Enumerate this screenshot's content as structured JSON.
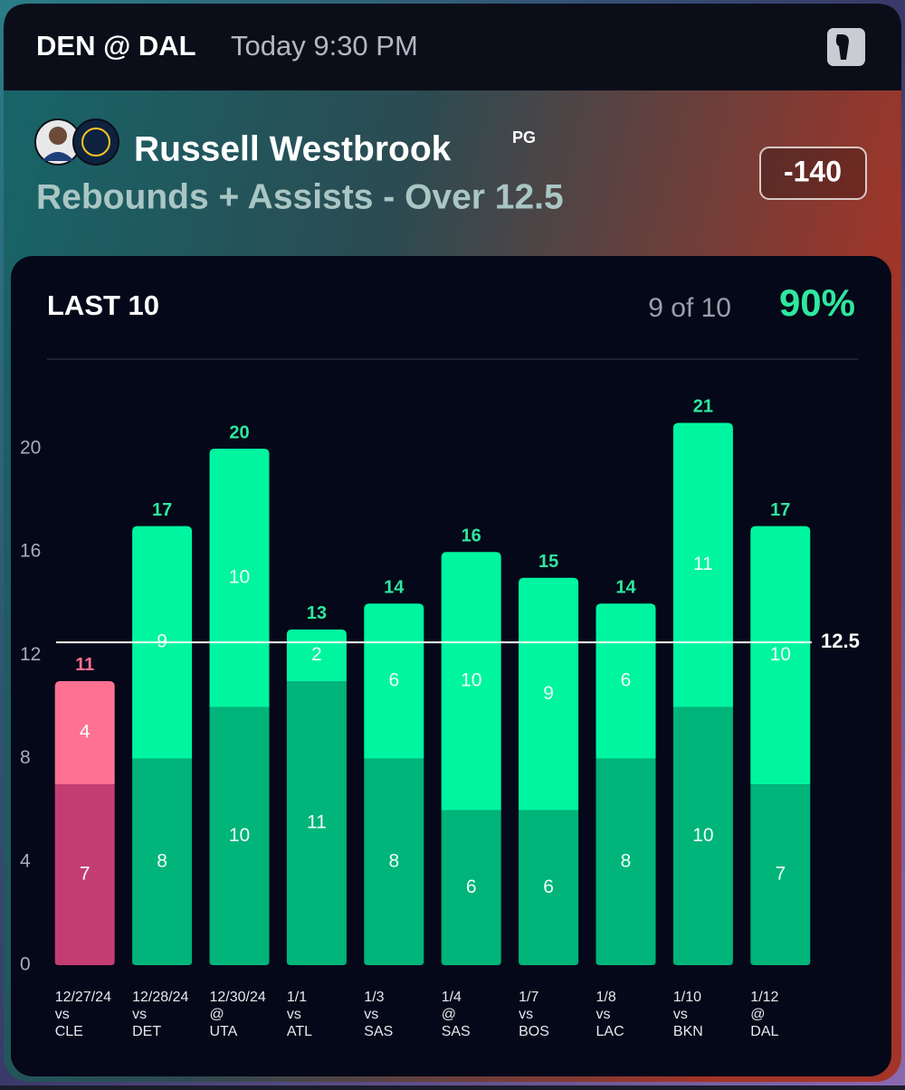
{
  "header": {
    "matchup": "DEN @ DAL",
    "time": "Today 9:30 PM"
  },
  "player": {
    "name": "Russell Westbrook",
    "position": "PG",
    "prop": "Rebounds + Assists - Over 12.5",
    "odds": "-140"
  },
  "chart_data": {
    "type": "stacked_bar",
    "title": "LAST 10",
    "record": "9 of 10",
    "rate": "90%",
    "categories": [
      [
        "12/27/24",
        "vs",
        "CLE"
      ],
      [
        "12/28/24",
        "vs",
        "DET"
      ],
      [
        "12/30/24",
        "@",
        "UTA"
      ],
      [
        "1/1",
        "vs",
        "ATL"
      ],
      [
        "1/3",
        "vs",
        "SAS"
      ],
      [
        "1/4",
        "@",
        "SAS"
      ],
      [
        "1/7",
        "vs",
        "BOS"
      ],
      [
        "1/8",
        "vs",
        "LAC"
      ],
      [
        "1/10",
        "vs",
        "BKN"
      ],
      [
        "1/12",
        "@",
        "DAL"
      ]
    ],
    "series": [
      {
        "color": "#00b47a",
        "miss_color": "#c43d72",
        "values": [
          7,
          8,
          10,
          11,
          8,
          6,
          6,
          8,
          10,
          7
        ]
      },
      {
        "color": "#00f5a0",
        "miss_color": "#ff7193",
        "values": [
          4,
          9,
          10,
          2,
          6,
          10,
          9,
          6,
          11,
          10
        ]
      }
    ],
    "total_labels": [
      11,
      17,
      20,
      13,
      14,
      16,
      15,
      14,
      21,
      17
    ],
    "line": 12.5,
    "ylim": [
      0,
      22
    ],
    "yticks": [
      0,
      4,
      8,
      12,
      16,
      20
    ],
    "hit_label_color": "#2ee89e",
    "miss_label_color": "#ff6f91"
  }
}
